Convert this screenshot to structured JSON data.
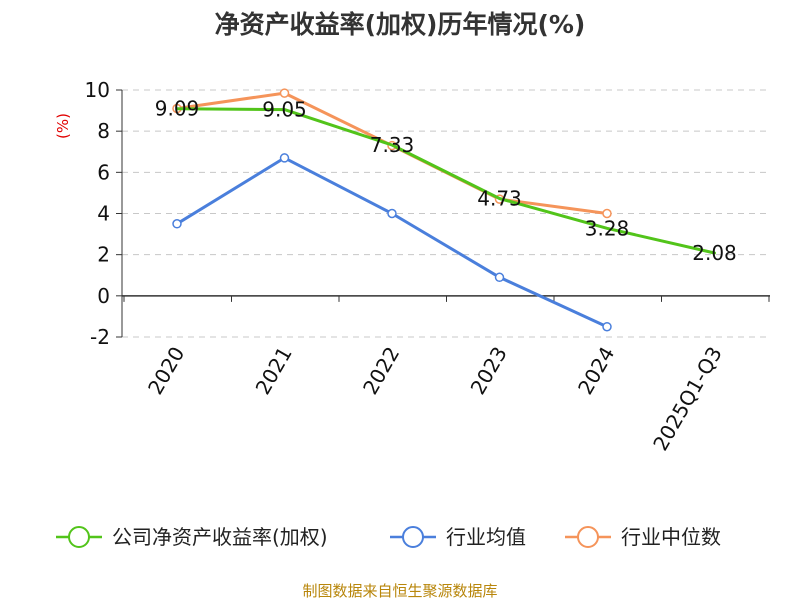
{
  "chart_data": {
    "type": "line",
    "title": "净资产收益率(加权)历年情况(%)",
    "ylabel": "(%)",
    "xlabel": "",
    "categories": [
      "2020",
      "2021",
      "2022",
      "2023",
      "2024",
      "2025Q1-Q3"
    ],
    "ylim": [
      -2,
      10
    ],
    "yticks": [
      -2,
      0,
      2,
      4,
      6,
      8,
      10
    ],
    "ytick_labels": [
      "-2",
      "0",
      "2",
      "4",
      "6",
      "8",
      "10"
    ],
    "grid": true,
    "legend_position": "bottom",
    "series": [
      {
        "name": "公司净资产收益率(加权)",
        "color": "#52c41a",
        "values": [
          9.09,
          9.05,
          7.33,
          4.73,
          3.28,
          2.08
        ],
        "labels": [
          "9.09",
          "9.05",
          "7.33",
          "4.73",
          "3.28",
          "2.08"
        ]
      },
      {
        "name": "行业均值",
        "color": "#4a7fdc",
        "values": [
          3.5,
          6.7,
          4.0,
          0.9,
          -1.5,
          null
        ]
      },
      {
        "name": "行业中位数",
        "color": "#f5945a",
        "values": [
          9.1,
          9.85,
          7.3,
          4.7,
          4.0,
          null
        ]
      }
    ]
  },
  "source": "制图数据来自恒生聚源数据库"
}
